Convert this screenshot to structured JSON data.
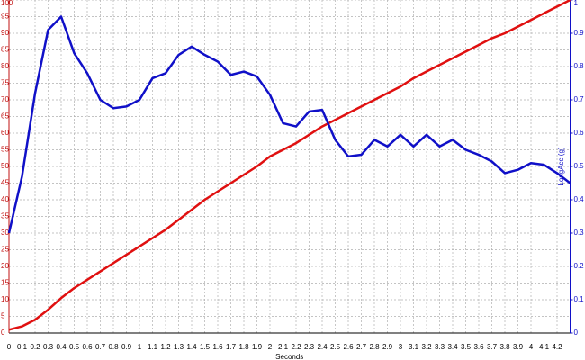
{
  "chart_data": {
    "type": "line",
    "x": [
      0,
      0.1,
      0.2,
      0.3,
      0.4,
      0.5,
      0.6,
      0.7,
      0.8,
      0.9,
      1,
      1.1,
      1.2,
      1.3,
      1.4,
      1.5,
      1.6,
      1.7,
      1.8,
      1.9,
      2,
      2.1,
      2.2,
      2.3,
      2.4,
      2.5,
      2.6,
      2.7,
      2.8,
      2.9,
      3,
      3.1,
      3.2,
      3.3,
      3.4,
      3.5,
      3.6,
      3.7,
      3.8,
      3.9,
      4,
      4.1,
      4.2,
      4.3
    ],
    "series": [
      {
        "color": "#e01010",
        "axis": "y",
        "values": [
          1,
          2,
          4,
          7,
          10.5,
          13.5,
          16,
          18.5,
          21,
          23.5,
          26,
          28.5,
          31,
          34,
          37,
          40,
          42.5,
          45,
          47.5,
          50,
          53,
          55,
          57,
          59.5,
          62,
          64,
          66,
          68,
          70,
          72,
          74,
          76.5,
          78.5,
          80.5,
          82.5,
          84.5,
          86.5,
          88.5,
          90,
          92,
          94,
          96,
          98,
          100
        ]
      },
      {
        "color": "#1010c8",
        "axis": "y2",
        "values": [
          0.3,
          0.47,
          0.72,
          0.91,
          0.95,
          0.84,
          0.78,
          0.7,
          0.675,
          0.68,
          0.7,
          0.765,
          0.78,
          0.835,
          0.86,
          0.835,
          0.815,
          0.775,
          0.785,
          0.77,
          0.715,
          0.63,
          0.62,
          0.665,
          0.67,
          0.58,
          0.53,
          0.535,
          0.58,
          0.56,
          0.595,
          0.56,
          0.595,
          0.56,
          0.58,
          0.55,
          0.535,
          0.515,
          0.48,
          0.49,
          0.51,
          0.505,
          0.48,
          0.45
        ]
      }
    ],
    "xlim": [
      0,
      4.3
    ],
    "xticks": [
      0,
      0.1,
      0.2,
      0.3,
      0.4,
      0.5,
      0.6,
      0.7,
      0.8,
      0.9,
      1,
      1.1,
      1.2,
      1.3,
      1.4,
      1.5,
      1.6,
      1.7,
      1.8,
      1.9,
      2,
      2.1,
      2.2,
      2.3,
      2.4,
      2.5,
      2.6,
      2.7,
      2.8,
      2.9,
      3,
      3.1,
      3.2,
      3.3,
      3.4,
      3.5,
      3.6,
      3.7,
      3.8,
      3.9,
      4,
      4.1,
      4.2
    ],
    "ylim": [
      0,
      100
    ],
    "yticks": [
      0,
      5,
      10,
      15,
      20,
      25,
      30,
      35,
      40,
      45,
      50,
      55,
      60,
      65,
      70,
      75,
      80,
      85,
      90,
      95,
      100
    ],
    "y2lim": [
      0,
      1
    ],
    "y2ticks": [
      0,
      0.1,
      0.2,
      0.3,
      0.4,
      0.5,
      0.6,
      0.7,
      0.8,
      0.9,
      1
    ],
    "y2label": "LongAcc (g)",
    "xlabel": "Seconds",
    "grid": true
  }
}
